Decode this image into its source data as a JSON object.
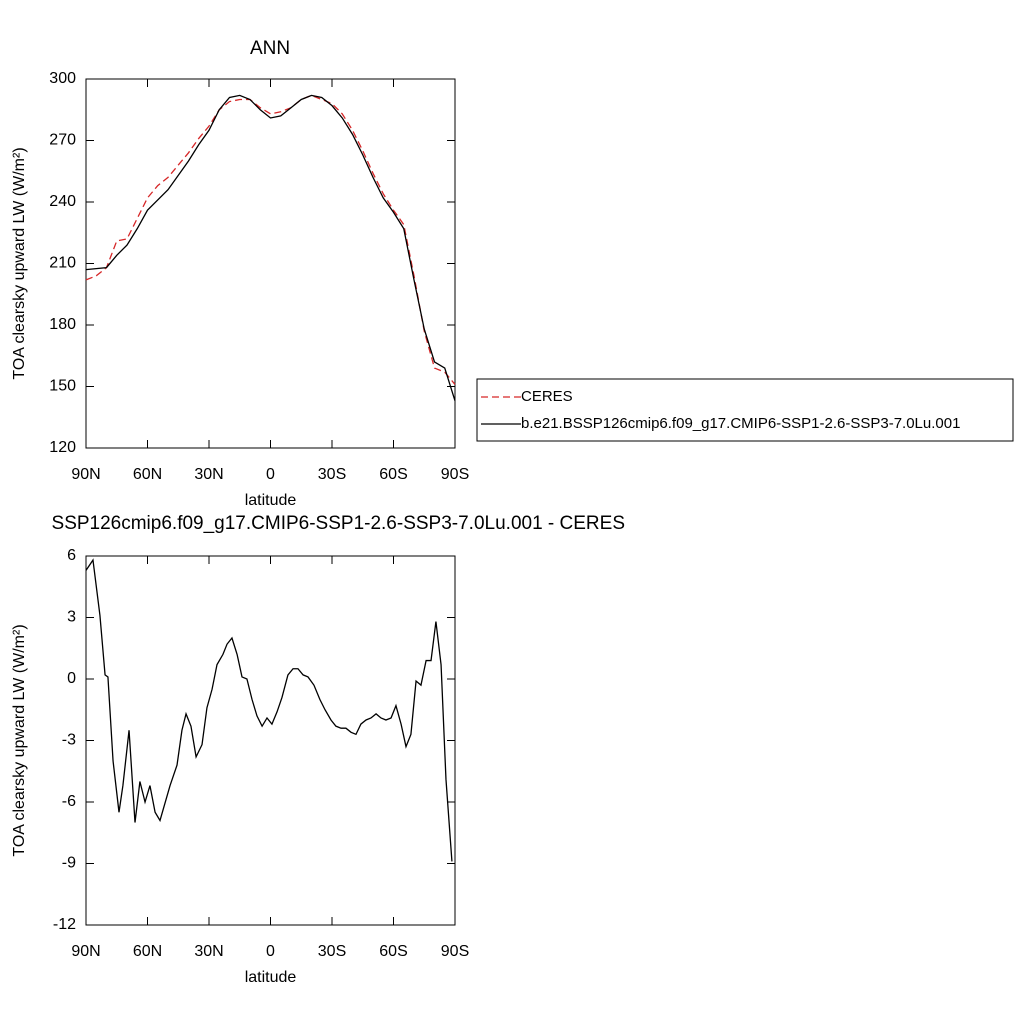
{
  "chart_data": [
    {
      "type": "line",
      "title": "ANN",
      "xlabel": "latitude",
      "ylabel": "TOA clearsky upward LW (W/m²)",
      "x": [
        90,
        85,
        80,
        75,
        70,
        65,
        60,
        55,
        50,
        45,
        40,
        35,
        30,
        25,
        20,
        15,
        10,
        5,
        0,
        -5,
        -10,
        -15,
        -20,
        -25,
        -30,
        -35,
        -40,
        -45,
        -50,
        -55,
        -60,
        -65,
        -70,
        -75,
        -80,
        -85,
        -90
      ],
      "series": [
        {
          "name": "CERES",
          "color": "#d62728",
          "line_style": "dashed",
          "values": [
            202,
            204,
            208,
            221,
            222,
            232,
            242,
            248,
            252,
            258,
            264,
            271,
            277,
            285,
            289,
            290,
            290,
            286,
            283,
            284,
            286,
            290,
            292,
            290,
            288,
            283,
            275,
            265,
            254,
            244,
            236,
            229,
            204,
            177,
            159,
            157,
            151
          ]
        },
        {
          "name": "b.e21.BSSP126cmip6.f09_g17.CMIP6-SSP1-2.6-SSP3-7.0Lu.001",
          "color": "#000000",
          "line_style": "solid",
          "values": [
            207,
            207.5,
            208,
            214,
            219,
            227,
            236,
            241,
            246,
            253,
            260,
            268,
            275,
            285,
            291,
            292,
            290,
            285,
            281,
            282,
            286,
            290,
            292,
            291,
            287,
            281,
            273,
            263,
            252,
            242,
            235,
            227,
            202,
            178,
            162,
            159,
            143
          ]
        }
      ],
      "xlim": [
        90,
        -90
      ],
      "xticks": [
        {
          "value": 90,
          "label": "90N"
        },
        {
          "value": 60,
          "label": "60N"
        },
        {
          "value": 30,
          "label": "30N"
        },
        0,
        {
          "value": -30,
          "label": "30S"
        },
        {
          "value": -60,
          "label": "60S"
        },
        {
          "value": -90,
          "label": "90S"
        }
      ],
      "ylim": [
        120,
        300
      ],
      "yticks": [
        120,
        150,
        180,
        210,
        240,
        270,
        300
      ],
      "legend": "right"
    },
    {
      "type": "line",
      "title": "SSP126cmip6.f09_g17.CMIP6-SSP1-2.6-SSP3-7.0Lu.001 - CERES",
      "xlabel": "latitude",
      "ylabel": "TOA clearsky upward LW (W/m²)",
      "x": [
        90,
        86.6,
        83.2,
        80.7,
        79.3,
        76.8,
        73.9,
        72.0,
        69.0,
        66.1,
        63.7,
        61.2,
        58.8,
        56.3,
        53.9,
        49.0,
        45.6,
        43.2,
        41.2,
        38.8,
        36.3,
        33.4,
        31.0,
        28.5,
        26.1,
        23.2,
        21.2,
        18.8,
        16.3,
        13.9,
        11.5,
        9.0,
        6.6,
        4.1,
        1.7,
        -0.7,
        -3.2,
        -5.6,
        -8.5,
        -11.0,
        -13.4,
        -15.9,
        -18.3,
        -21.2,
        -24.1,
        -26.6,
        -29.5,
        -31.9,
        -34.4,
        -36.8,
        -39.3,
        -41.7,
        -44.1,
        -46.6,
        -49.0,
        -51.5,
        -53.9,
        -56.3,
        -58.8,
        -61.2,
        -63.7,
        -66.1,
        -68.5,
        -71.0,
        -73.4,
        -75.9,
        -78.3,
        -80.7,
        -83.2,
        -85.6,
        -88.5
      ],
      "series": [
        {
          "name": "b.e21.BSSP126cmip6.f09_g17.CMIP6-SSP1-2.6-SSP3-7.0Lu.001 - CERES",
          "color": "#000000",
          "line_style": "solid",
          "values": [
            5.3,
            5.8,
            3.1,
            0.2,
            0.1,
            -4,
            -6.5,
            -5.2,
            -2.5,
            -7,
            -5,
            -6,
            -5.2,
            -6.5,
            -6.9,
            -5.2,
            -4.2,
            -2.5,
            -1.7,
            -2.3,
            -3.8,
            -3.2,
            -1.4,
            -0.5,
            0.7,
            1.2,
            1.7,
            2.0,
            1.2,
            0.1,
            0,
            -1,
            -1.8,
            -2.3,
            -1.9,
            -2.2,
            -1.6,
            -0.9,
            0.2,
            0.5,
            0.5,
            0.2,
            0.1,
            -0.3,
            -1.0,
            -1.5,
            -2.0,
            -2.3,
            -2.4,
            -2.4,
            -2.6,
            -2.7,
            -2.2,
            -2.0,
            -1.9,
            -1.7,
            -1.9,
            -2.0,
            -1.9,
            -1.3,
            -2.2,
            -3.3,
            -2.7,
            -0.1,
            -0.3,
            0.9,
            0.9,
            2.8,
            0.7,
            -4.9,
            -8.9
          ]
        }
      ],
      "xlim": [
        90,
        -90
      ],
      "xticks": [
        {
          "value": 90,
          "label": "90N"
        },
        {
          "value": 60,
          "label": "60N"
        },
        {
          "value": 30,
          "label": "30N"
        },
        0,
        {
          "value": -30,
          "label": "30S"
        },
        {
          "value": -60,
          "label": "60S"
        },
        {
          "value": -90,
          "label": "90S"
        }
      ],
      "ylim": [
        -12,
        6
      ],
      "yticks": [
        -12,
        -9,
        -6,
        -3,
        0,
        3,
        6
      ]
    }
  ]
}
